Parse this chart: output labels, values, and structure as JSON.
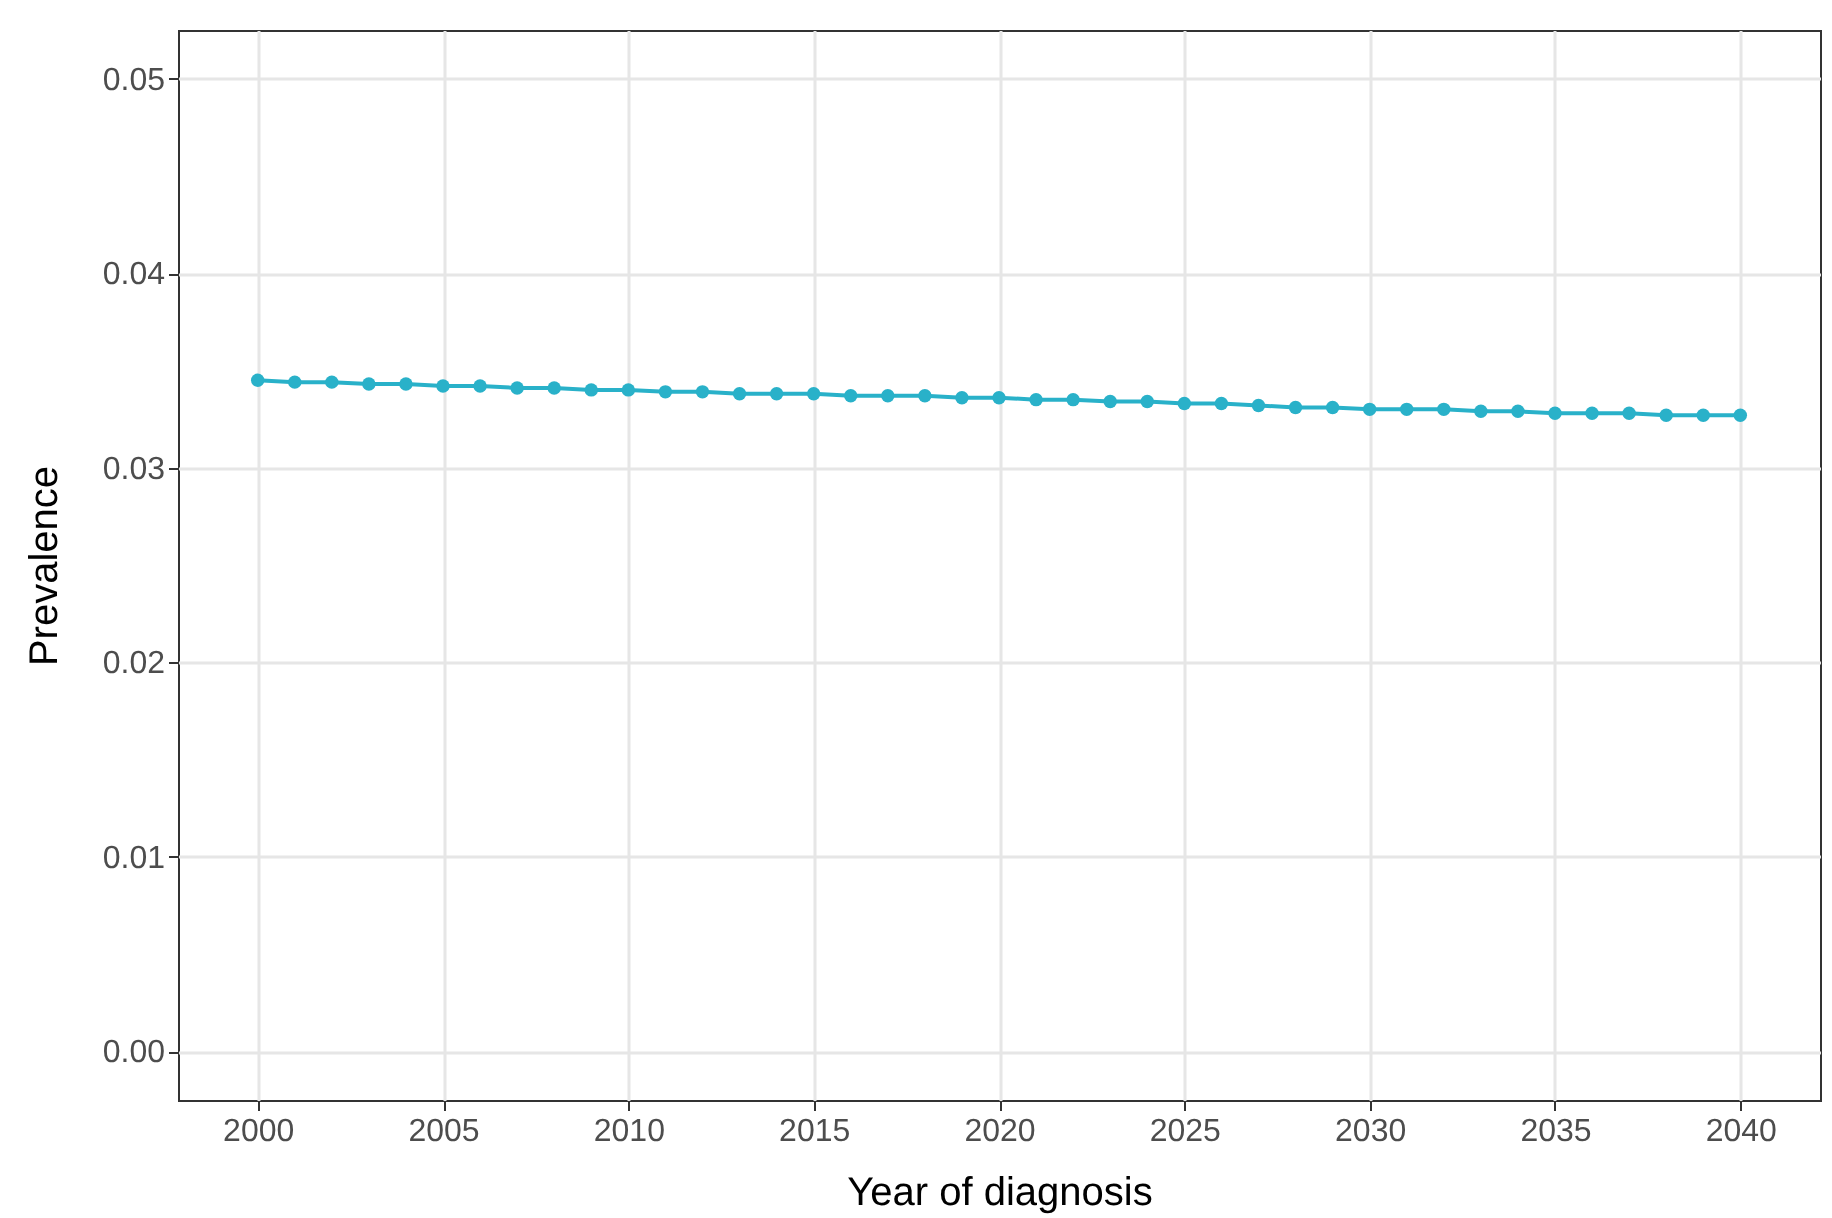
{
  "chart_data": {
    "type": "line",
    "xlabel": "Year of diagnosis",
    "ylabel": "Prevalence",
    "x": [
      2000,
      2001,
      2002,
      2003,
      2004,
      2005,
      2006,
      2007,
      2008,
      2009,
      2010,
      2011,
      2012,
      2013,
      2014,
      2015,
      2016,
      2017,
      2018,
      2019,
      2020,
      2021,
      2022,
      2023,
      2024,
      2025,
      2026,
      2027,
      2028,
      2029,
      2030,
      2031,
      2032,
      2033,
      2034,
      2035,
      2036,
      2037,
      2038,
      2039,
      2040
    ],
    "series": [
      {
        "color": "#29b1c9",
        "values": [
          0.0345,
          0.0344,
          0.0344,
          0.0343,
          0.0343,
          0.0342,
          0.0342,
          0.0341,
          0.0341,
          0.034,
          0.034,
          0.0339,
          0.0339,
          0.0338,
          0.0338,
          0.0338,
          0.0337,
          0.0337,
          0.0337,
          0.0336,
          0.0336,
          0.0335,
          0.0335,
          0.0334,
          0.0334,
          0.0333,
          0.0333,
          0.0332,
          0.0331,
          0.0331,
          0.033,
          0.033,
          0.033,
          0.0329,
          0.0329,
          0.0328,
          0.0328,
          0.0328,
          0.0327,
          0.0327,
          0.0327
        ]
      }
    ],
    "xlim": [
      1997.85,
      2042.15
    ],
    "xticks": [
      2000,
      2005,
      2010,
      2015,
      2020,
      2025,
      2030,
      2035,
      2040
    ],
    "ylim": [
      -0.0025,
      0.0525
    ],
    "yticks": [
      {
        "value": 0,
        "label": "0.00"
      },
      {
        "value": 0.01,
        "label": "0.01"
      },
      {
        "value": 0.02,
        "label": "0.02"
      },
      {
        "value": 0.03,
        "label": "0.03"
      },
      {
        "value": 0.04,
        "label": "0.04"
      },
      {
        "value": 0.05,
        "label": "0.05"
      }
    ],
    "grid": true,
    "marker": "circle",
    "line_style": "solid"
  }
}
